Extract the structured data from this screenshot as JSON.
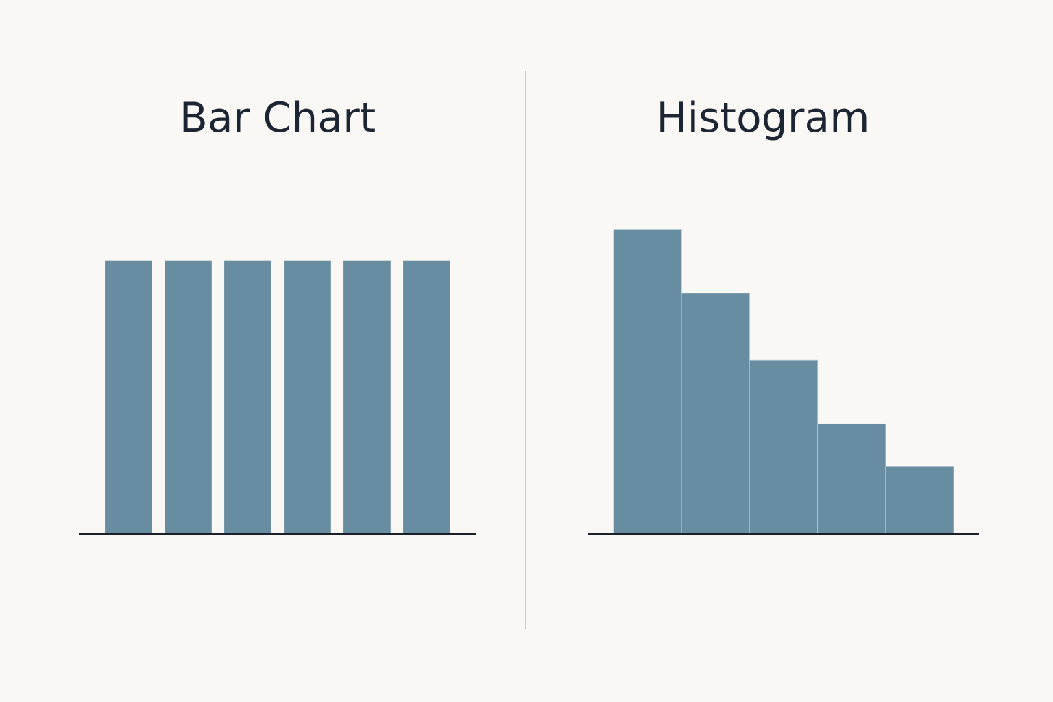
{
  "colors": {
    "background": "#faf8f4",
    "bar_fill": "#688ca0",
    "bar_edge": "#a9c0cd",
    "axis": "#1a1f2a",
    "title_text": "#1c2533",
    "divider": "#c9c9c5"
  },
  "chart_data": [
    {
      "type": "bar",
      "title": "Bar Chart",
      "categories": [
        "",
        "",
        "",
        "",
        "",
        ""
      ],
      "values": [
        1,
        1,
        1,
        1,
        1,
        1
      ],
      "xlabel": "",
      "ylabel": "",
      "ylim": [
        0,
        1.2
      ],
      "grid": false
    },
    {
      "type": "bar",
      "title": "Histogram",
      "categories": [
        "",
        "",
        "",
        "",
        ""
      ],
      "values": [
        1.0,
        0.79,
        0.57,
        0.36,
        0.22
      ],
      "contiguous_bins": true,
      "xlabel": "",
      "ylabel": "",
      "ylim": [
        0,
        1.2
      ],
      "grid": false
    }
  ]
}
